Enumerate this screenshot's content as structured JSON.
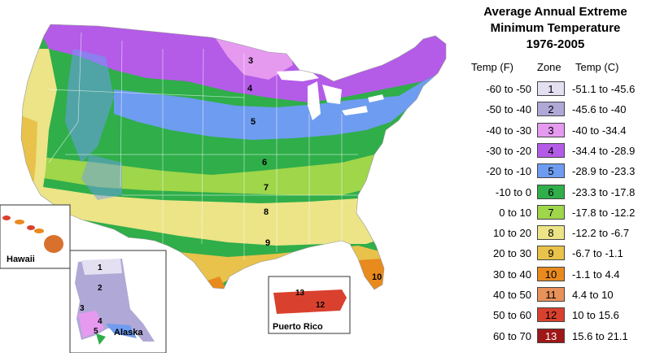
{
  "legend": {
    "title_lines": [
      "Average Annual Extreme",
      "Minimum Temperature",
      "1976-2005"
    ],
    "headers": {
      "temp_f": "Temp (F)",
      "zone": "Zone",
      "temp_c": "Temp (C)"
    },
    "rows": [
      {
        "f": "-60 to -50",
        "zone": "1",
        "c": "-51.1 to -45.6",
        "color": "#e4e0f2"
      },
      {
        "f": "-50 to -40",
        "zone": "2",
        "c": "-45.6 to -40",
        "color": "#b0a8d6"
      },
      {
        "f": "-40 to -30",
        "zone": "3",
        "c": "-40 to -34.4",
        "color": "#e59af0"
      },
      {
        "f": "-30 to -20",
        "zone": "4",
        "c": "-34.4 to -28.9",
        "color": "#b45be8"
      },
      {
        "f": "-20 to -10",
        "zone": "5",
        "c": "-28.9 to -23.3",
        "color": "#6e9cf0"
      },
      {
        "f": "-10 to 0",
        "zone": "6",
        "c": "-23.3 to -17.8",
        "color": "#2fae4a"
      },
      {
        "f": "0 to 10",
        "zone": "7",
        "c": "-17.8 to -12.2",
        "color": "#9fd64a"
      },
      {
        "f": "10 to 20",
        "zone": "8",
        "c": "-12.2 to -6.7",
        "color": "#ece487"
      },
      {
        "f": "20 to 30",
        "zone": "9",
        "c": "-6.7 to -1.1",
        "color": "#e8c24a"
      },
      {
        "f": "30 to 40",
        "zone": "10",
        "c": "-1.1 to 4.4",
        "color": "#e88a1e"
      },
      {
        "f": "40 to 50",
        "zone": "11",
        "c": "4.4 to 10",
        "color": "#e8915a"
      },
      {
        "f": "50 to 60",
        "zone": "12",
        "c": "10 to 15.6",
        "color": "#d9412e"
      },
      {
        "f": "60 to 70",
        "zone": "13",
        "c": "15.6 to 21.1",
        "color": "#9e1818"
      }
    ]
  },
  "map": {
    "zone_labels": [
      "3",
      "4",
      "5",
      "6",
      "7",
      "8",
      "9",
      "10"
    ],
    "insets": {
      "hawaii": {
        "name": "Hawaii"
      },
      "alaska": {
        "name": "Alaska",
        "zone_labels": [
          "1",
          "2",
          "3",
          "4",
          "5"
        ]
      },
      "puerto_rico": {
        "name": "Puerto Rico",
        "zone_labels": [
          "13",
          "12"
        ]
      }
    }
  }
}
